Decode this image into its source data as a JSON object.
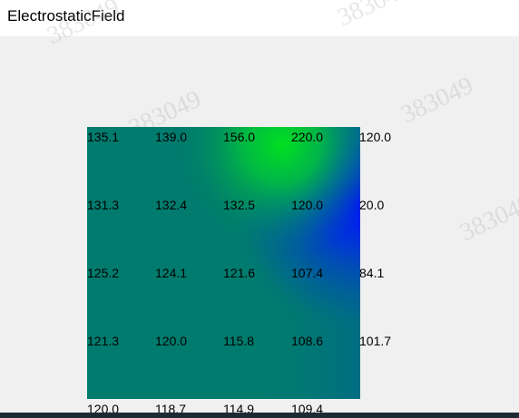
{
  "window": {
    "title": "ElectrostaticField"
  },
  "watermark": "383049",
  "colors": {
    "field_base": "#007b6e",
    "hot": "#00e020",
    "cold": "#0010ff",
    "mid": "#005ca0"
  },
  "grid": {
    "rows": [
      [
        "135.1",
        "139.0",
        "156.0",
        "220.0",
        "120.0"
      ],
      [
        "131.3",
        "132.4",
        "132.5",
        "120.0",
        "20.0"
      ],
      [
        "125.2",
        "124.1",
        "121.6",
        "107.4",
        "84.1"
      ],
      [
        "121.3",
        "120.0",
        "115.8",
        "108.6",
        "101.7"
      ],
      [
        "120.0",
        "118.7",
        "114.9",
        "109.4",
        ""
      ]
    ]
  }
}
